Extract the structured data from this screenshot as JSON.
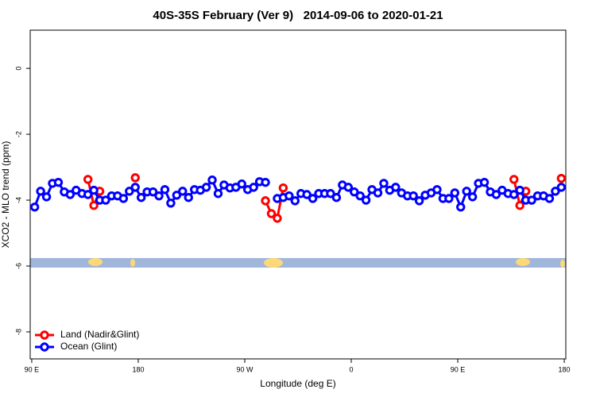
{
  "chart_data": {
    "type": "line",
    "title": "40S-35S February (Ver 9)   2014-09-06 to 2020-01-21",
    "x_label": "Longitude (deg E)",
    "y_label": "XCO2 - MLO trend (ppm)",
    "xlim": [
      88.7,
      541.3
    ],
    "xticks": [
      {
        "value": 90,
        "label": "90 E"
      },
      {
        "value": 180,
        "label": "180"
      },
      {
        "value": 270,
        "label": "90 W"
      },
      {
        "value": 360,
        "label": "0"
      },
      {
        "value": 450,
        "label": "90 E"
      },
      {
        "value": 540,
        "label": "180"
      }
    ],
    "ylim": [
      -8.82,
      1.16
    ],
    "yticks": [
      -8,
      -6,
      -4,
      -2,
      0
    ],
    "legend": "bottom-left",
    "series": [
      {
        "name": "Land (Nadir&Glint)",
        "color": "#ff0000",
        "x": [
          137.5,
          142.5,
          147.5,
          152.5,
          177.5,
          182.5,
          287.5,
          292.5,
          297.5,
          302.5,
          307.5,
          497.5,
          502.5,
          507.5,
          512.5,
          537.5
        ],
        "values": [
          -3.37,
          -4.16,
          -3.73,
          null,
          -3.32,
          null,
          -4.02,
          -4.41,
          -4.55,
          -3.63,
          null,
          -3.37,
          -4.16,
          -3.73,
          null,
          -3.34
        ]
      },
      {
        "name": "Ocean (Glint)",
        "color": "#0000ff",
        "x": [
          92.5,
          97.5,
          102.5,
          107.5,
          112.5,
          117.5,
          122.5,
          127.5,
          132.5,
          137.5,
          142.5,
          147.5,
          152.5,
          157.5,
          162.5,
          167.5,
          172.5,
          177.5,
          182.5,
          187.5,
          192.5,
          197.5,
          202.5,
          207.5,
          212.5,
          217.5,
          222.5,
          227.5,
          232.5,
          237.5,
          242.5,
          247.5,
          252.5,
          257.5,
          262.5,
          267.5,
          272.5,
          277.5,
          282.5,
          287.5,
          292.5,
          297.5,
          302.5,
          307.5,
          312.5,
          317.5,
          322.5,
          327.5,
          332.5,
          337.5,
          342.5,
          347.5,
          352.5,
          357.5,
          362.5,
          367.5,
          372.5,
          377.5,
          382.5,
          387.5,
          392.5,
          397.5,
          402.5,
          407.5,
          412.5,
          417.5,
          422.5,
          427.5,
          432.5,
          437.5,
          442.5,
          447.5,
          452.5,
          457.5,
          462.5,
          467.5,
          472.5,
          477.5,
          482.5,
          487.5,
          492.5,
          497.5,
          502.5,
          507.5,
          512.5,
          517.5,
          522.5,
          527.5,
          532.5,
          537.5
        ],
        "values": [
          -4.21,
          -3.73,
          -3.9,
          -3.49,
          -3.46,
          -3.75,
          -3.83,
          -3.7,
          -3.8,
          -3.83,
          -3.7,
          -4.0,
          -4.0,
          -3.87,
          -3.87,
          -3.95,
          -3.73,
          -3.61,
          -3.92,
          -3.75,
          -3.75,
          -3.87,
          -3.68,
          -4.09,
          -3.85,
          -3.73,
          -3.92,
          -3.68,
          -3.7,
          -3.61,
          -3.39,
          -3.8,
          -3.54,
          -3.63,
          -3.61,
          -3.51,
          -3.68,
          -3.61,
          -3.44,
          -3.46,
          null,
          -3.95,
          -3.92,
          -3.87,
          -4.02,
          -3.8,
          -3.83,
          -3.95,
          -3.8,
          -3.8,
          -3.8,
          -3.92,
          -3.54,
          -3.61,
          -3.75,
          -3.87,
          -4.0,
          -3.68,
          -3.78,
          -3.49,
          -3.7,
          -3.61,
          -3.78,
          -3.87,
          -3.87,
          -4.02,
          -3.85,
          -3.78,
          -3.68,
          -3.95,
          -3.95,
          -3.78,
          -4.21,
          -3.73,
          -3.9,
          -3.49,
          -3.46,
          -3.75,
          -3.83,
          -3.7,
          -3.8,
          -3.83,
          -3.7,
          -4.0,
          -4.0,
          -3.87,
          -3.87,
          -3.95,
          -3.73,
          -3.61
        ]
      }
    ]
  }
}
